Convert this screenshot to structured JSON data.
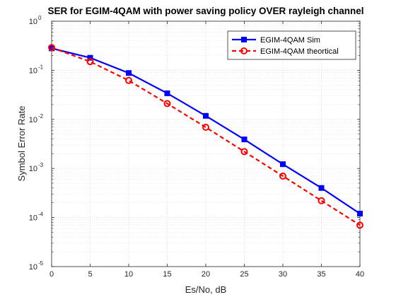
{
  "chart_data": {
    "type": "line",
    "title": "SER for EGIM-4QAM with power saving policy OVER rayleigh channel",
    "xlabel": "Es/No, dB",
    "ylabel": "Symbol Error Rate",
    "x": [
      0,
      5,
      10,
      15,
      20,
      25,
      30,
      35,
      40
    ],
    "xlim": [
      0,
      40
    ],
    "ylim": [
      1e-05,
      1
    ],
    "yscale": "log",
    "x_ticks": [
      0,
      5,
      10,
      15,
      20,
      25,
      30,
      35,
      40
    ],
    "x_tick_labels": [
      "0",
      "5",
      "10",
      "15",
      "20",
      "25",
      "30",
      "35",
      "40"
    ],
    "y_ticks": [
      1e-05,
      0.0001,
      0.001,
      0.01,
      0.1,
      1
    ],
    "y_tick_labels": [
      {
        "base": "10",
        "exp": "-5"
      },
      {
        "base": "10",
        "exp": "-4"
      },
      {
        "base": "10",
        "exp": "-3"
      },
      {
        "base": "10",
        "exp": "-2"
      },
      {
        "base": "10",
        "exp": "-1"
      },
      {
        "base": "10",
        "exp": "0"
      }
    ],
    "grid": true,
    "minor_grid": true,
    "legend_position": "top-right",
    "series": [
      {
        "name": "EGIM-4QAM Sim",
        "values": [
          0.28,
          0.18,
          0.088,
          0.034,
          0.0118,
          0.0039,
          0.00122,
          0.0004,
          0.00012
        ],
        "color": "#0000ff",
        "line_style": "solid",
        "marker": "square"
      },
      {
        "name": "EGIM-4QAM theortical",
        "values": [
          0.29,
          0.15,
          0.062,
          0.021,
          0.0069,
          0.0022,
          0.0007,
          0.00022,
          7e-05
        ],
        "color": "#ff0000",
        "line_style": "dashed",
        "marker": "circle"
      }
    ]
  }
}
